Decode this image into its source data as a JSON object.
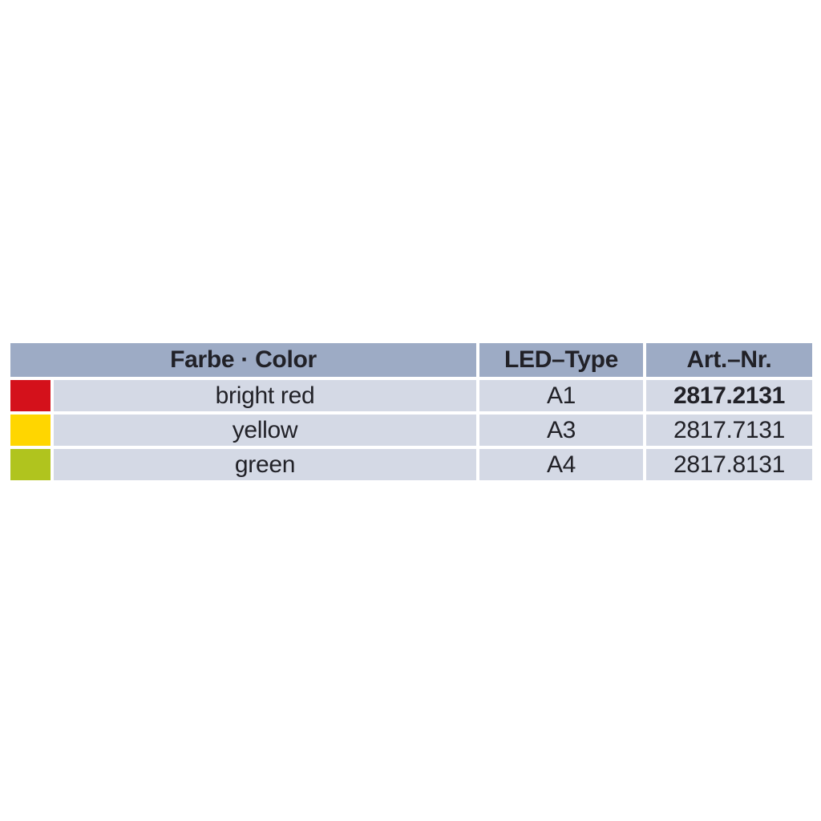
{
  "page": {
    "background": "#ffffff",
    "description": "Product catalog table of LED lens colors with article numbers"
  },
  "table": {
    "colors": {
      "header_bg": "#9dabc5",
      "row_bg": "#d4d9e5",
      "text": "#212127",
      "gap": "#ffffff"
    },
    "headers": {
      "color": "Farbe · Color",
      "led_type": "LED–Type",
      "art_nr": "Art.–Nr."
    },
    "rows": [
      {
        "swatch_color": "#d4111b",
        "swatch_name": "bright red",
        "color_name": "bright red",
        "led_type": "A1",
        "art_nr": "2817.2131",
        "art_nr_bold": true
      },
      {
        "swatch_color": "#ffd600",
        "swatch_name": "yellow",
        "color_name": "yellow",
        "led_type": "A3",
        "art_nr": "2817.7131",
        "art_nr_bold": false
      },
      {
        "swatch_color": "#b0c41e",
        "swatch_name": "green",
        "color_name": "green",
        "led_type": "A4",
        "art_nr": "2817.8131",
        "art_nr_bold": false
      }
    ]
  }
}
